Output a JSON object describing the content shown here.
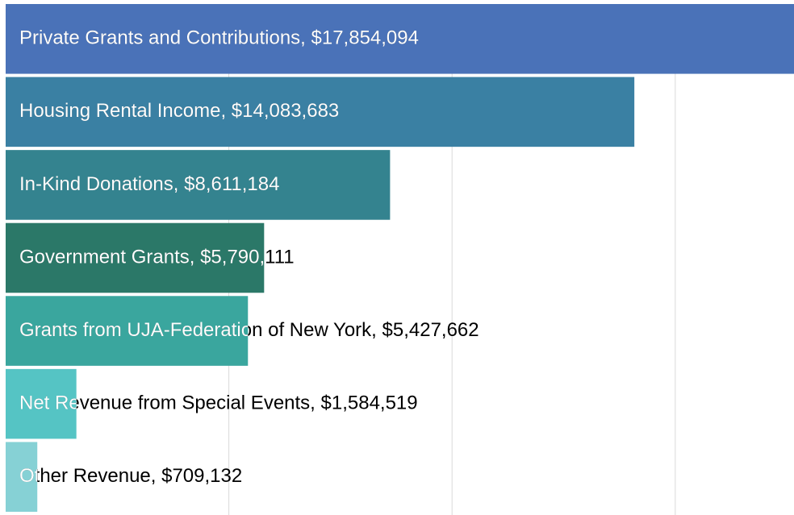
{
  "chart_data": {
    "type": "bar",
    "orientation": "horizontal",
    "values": [
      17854094,
      14083683,
      8611184,
      5790111,
      5427662,
      1584519,
      709132
    ],
    "value_labels": [
      "Private Grants and Contributions, $17,854,094",
      "Housing Rental Income, $14,083,683",
      "In-Kind Donations, $8,611,184",
      "Government Grants, $5,790,111",
      "Grants from UJA-Federation of New York, $5,427,662",
      "Net Revenue from Special Events, $1,584,519",
      "Other Revenue, $709,132"
    ],
    "colors": [
      "#4a72b8",
      "#3a80a3",
      "#34838f",
      "#2b7868",
      "#3aa69e",
      "#55c4c4",
      "#86d1d5"
    ],
    "xlim": [
      0,
      17660000
    ],
    "xticks": [
      5000000,
      10000000,
      15000000
    ],
    "grid": true
  }
}
